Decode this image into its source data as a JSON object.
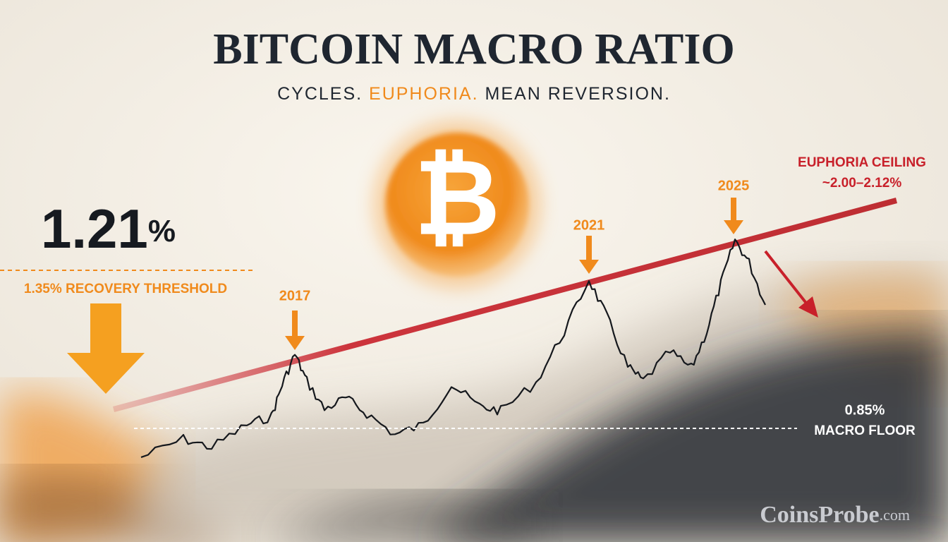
{
  "header": {
    "title": "BITCOIN MACRO RATIO",
    "subtitle": [
      "CYCLES.",
      "EUPHORIA.",
      "MEAN REVERSION."
    ]
  },
  "logo": {
    "symbol": "₿"
  },
  "current": {
    "value": "1.21",
    "unit": "%"
  },
  "recovery": {
    "label": "1.35% RECOVERY THRESHOLD"
  },
  "cycles": [
    "2017",
    "2021",
    "2025"
  ],
  "ceiling": {
    "label": "EUPHORIA CEILING",
    "range": "~2.00–2.12%"
  },
  "floor": {
    "value": "0.85%",
    "label": "MACRO FLOOR"
  },
  "watermark": {
    "name": "CoinsProbe",
    "suffix": ".com"
  }
}
